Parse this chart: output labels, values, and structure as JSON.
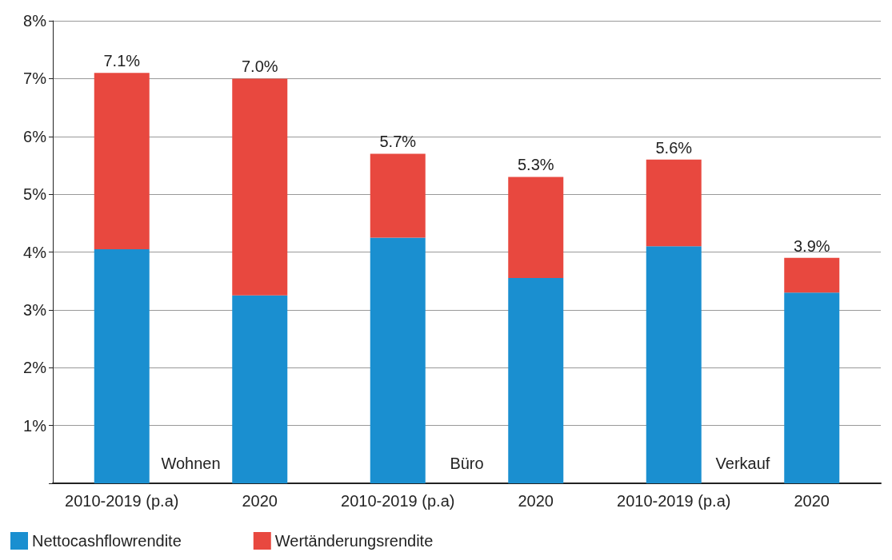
{
  "chart_data": {
    "type": "bar",
    "stacked": true,
    "categories": [
      "2010-2019 (p.a)",
      "2020",
      "2010-2019 (p.a)",
      "2020",
      "2010-2019 (p.a)",
      "2020"
    ],
    "series": [
      {
        "name": "Nettocashflowrendite",
        "color": "#1a8fd0",
        "values": [
          4.05,
          3.25,
          4.25,
          3.55,
          4.1,
          3.3
        ]
      },
      {
        "name": "Wertänderungsrendite",
        "color": "#e8483f",
        "values": [
          3.05,
          3.75,
          1.45,
          1.75,
          1.5,
          0.6
        ]
      }
    ],
    "totals": [
      "7.1%",
      "7.0%",
      "5.7%",
      "5.3%",
      "5.6%",
      "3.9%"
    ],
    "annotations": [
      "Wohnen",
      "Büro",
      "Verkauf"
    ],
    "ylim": [
      0,
      8
    ],
    "yticks": [
      {
        "value": 0,
        "label": null
      },
      {
        "value": 1,
        "label": "1%"
      },
      {
        "value": 2,
        "label": "2%"
      },
      {
        "value": 3,
        "label": "3%"
      },
      {
        "value": 4,
        "label": "4%"
      },
      {
        "value": 5,
        "label": "5%"
      },
      {
        "value": 6,
        "label": "6%"
      },
      {
        "value": 7,
        "label": "7%"
      },
      {
        "value": 8,
        "label": "8%"
      }
    ],
    "grid": "y",
    "legend": "bottom left"
  }
}
